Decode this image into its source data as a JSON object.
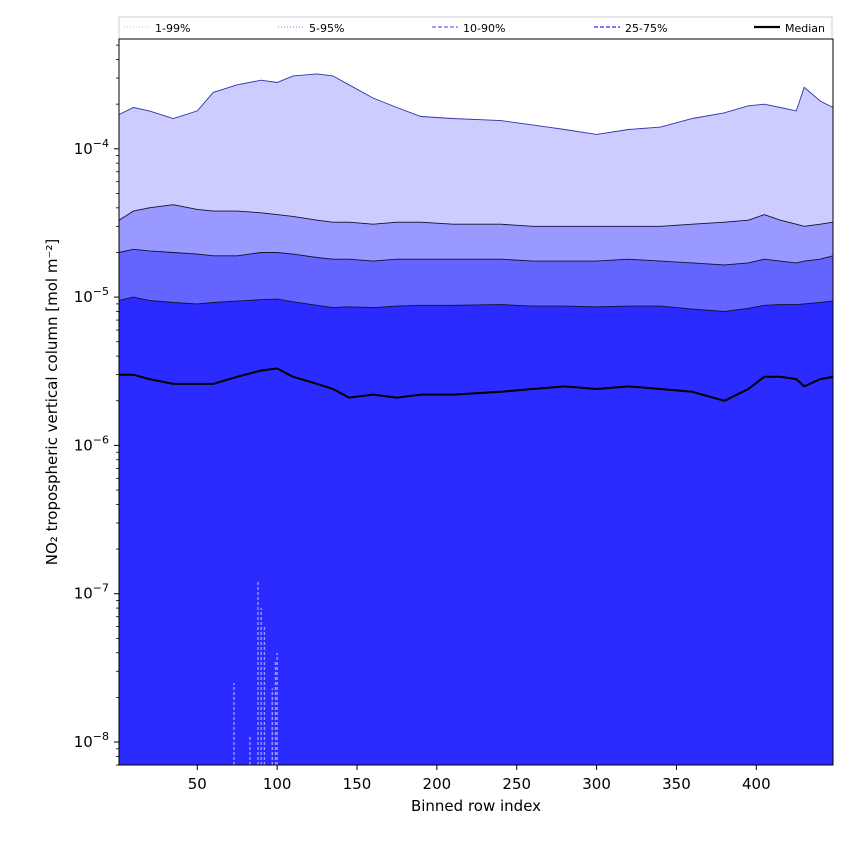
{
  "chart_data": {
    "type": "area",
    "title": "",
    "xlabel": "Binned row index",
    "ylabel": "NO₂ tropospheric vertical column [mol m⁻²]",
    "xlim": [
      1,
      448
    ],
    "ylim": [
      7e-09,
      0.00055
    ],
    "yscale": "log",
    "grid": false,
    "legend_position": "top",
    "x_ticks": [
      50,
      100,
      150,
      200,
      250,
      300,
      350,
      400
    ],
    "y_ticks": [
      {
        "value": 1e-08,
        "base": "10",
        "exp": "−8"
      },
      {
        "value": 1e-07,
        "base": "10",
        "exp": "−7"
      },
      {
        "value": 1e-06,
        "base": "10",
        "exp": "−6"
      },
      {
        "value": 1e-05,
        "base": "10",
        "exp": "−5"
      },
      {
        "value": 0.0001,
        "base": "10",
        "exp": "−4"
      }
    ],
    "x": [
      1,
      10,
      20,
      35,
      50,
      60,
      75,
      90,
      100,
      110,
      125,
      135,
      145,
      160,
      175,
      190,
      210,
      240,
      260,
      280,
      300,
      320,
      340,
      360,
      380,
      395,
      405,
      415,
      425,
      430,
      440,
      448
    ],
    "bands": [
      {
        "name": "1-99%",
        "color": "#ccccff",
        "upper": [
          0.00017,
          0.00019,
          0.00018,
          0.00016,
          0.00018,
          0.00024,
          0.00027,
          0.00029,
          0.00028,
          0.00031,
          0.00032,
          0.00031,
          0.00027,
          0.00022,
          0.00019,
          0.000165,
          0.00016,
          0.000155,
          0.000145,
          0.000135,
          0.000125,
          0.000135,
          0.00014,
          0.00016,
          0.000175,
          0.000195,
          0.0002,
          0.00019,
          0.00018,
          0.00026,
          0.00021,
          0.00019
        ],
        "lower": [
          7e-09,
          7e-09,
          7e-09,
          7e-09,
          7e-09,
          7e-09,
          7e-09,
          7e-09,
          7e-09,
          7e-09,
          7e-09,
          7e-09,
          7e-09,
          7e-09,
          7e-09,
          7e-09,
          7e-09,
          7e-09,
          7e-09,
          7e-09,
          7e-09,
          7e-09,
          7e-09,
          7e-09,
          7e-09,
          7e-09,
          7e-09,
          7e-09,
          7e-09,
          7e-09,
          7e-09,
          7e-09
        ]
      },
      {
        "name": "5-95%",
        "color": "#9999ff",
        "upper": [
          3.3e-05,
          3.8e-05,
          4e-05,
          4.2e-05,
          3.9e-05,
          3.8e-05,
          3.8e-05,
          3.7e-05,
          3.6e-05,
          3.5e-05,
          3.3e-05,
          3.2e-05,
          3.2e-05,
          3.1e-05,
          3.2e-05,
          3.2e-05,
          3.1e-05,
          3.1e-05,
          3e-05,
          3e-05,
          3e-05,
          3e-05,
          3e-05,
          3.1e-05,
          3.2e-05,
          3.3e-05,
          3.6e-05,
          3.3e-05,
          3.1e-05,
          3e-05,
          3.1e-05,
          3.2e-05
        ],
        "lower": [
          7e-09,
          7e-09,
          7e-09,
          7e-09,
          7e-09,
          7e-09,
          7e-09,
          7e-09,
          7e-09,
          7e-09,
          7e-09,
          7e-09,
          7e-09,
          7e-09,
          7e-09,
          7e-09,
          7e-09,
          7e-09,
          7e-09,
          7e-09,
          7e-09,
          7e-09,
          7e-09,
          7e-09,
          7e-09,
          7e-09,
          7e-09,
          7e-09,
          7e-09,
          7e-09,
          7e-09,
          7e-09
        ]
      },
      {
        "name": "10-90%",
        "color": "#6464ff",
        "upper": [
          2e-05,
          2.1e-05,
          2.05e-05,
          2e-05,
          1.95e-05,
          1.9e-05,
          1.9e-05,
          2e-05,
          2e-05,
          1.95e-05,
          1.85e-05,
          1.8e-05,
          1.8e-05,
          1.75e-05,
          1.8e-05,
          1.8e-05,
          1.8e-05,
          1.8e-05,
          1.75e-05,
          1.75e-05,
          1.75e-05,
          1.8e-05,
          1.75e-05,
          1.7e-05,
          1.65e-05,
          1.7e-05,
          1.8e-05,
          1.75e-05,
          1.7e-05,
          1.75e-05,
          1.8e-05,
          1.9e-05
        ],
        "lower": [
          7e-09,
          7e-09,
          7e-09,
          7e-09,
          7e-09,
          7e-09,
          7e-09,
          7e-09,
          7e-09,
          7e-09,
          7e-09,
          7e-09,
          7e-09,
          7e-09,
          7e-09,
          7e-09,
          7e-09,
          7e-09,
          7e-09,
          7e-09,
          7e-09,
          7e-09,
          7e-09,
          7e-09,
          7e-09,
          7e-09,
          7e-09,
          7e-09,
          7e-09,
          7e-09,
          7e-09,
          7e-09
        ]
      },
      {
        "name": "25-75%",
        "color": "#2b2bff",
        "upper": [
          9.5e-06,
          1e-05,
          9.5e-06,
          9.2e-06,
          9e-06,
          9.2e-06,
          9.4e-06,
          9.6e-06,
          9.7e-06,
          9.3e-06,
          8.8e-06,
          8.5e-06,
          8.6e-06,
          8.5e-06,
          8.7e-06,
          8.8e-06,
          8.8e-06,
          8.9e-06,
          8.7e-06,
          8.7e-06,
          8.6e-06,
          8.7e-06,
          8.7e-06,
          8.3e-06,
          8e-06,
          8.4e-06,
          8.8e-06,
          8.9e-06,
          8.9e-06,
          9e-06,
          9.2e-06,
          9.4e-06
        ],
        "lower": [
          7e-09,
          7e-09,
          7e-09,
          7e-09,
          7e-09,
          7e-09,
          7e-09,
          7e-09,
          7e-09,
          7e-09,
          7e-09,
          7e-09,
          7e-09,
          7e-09,
          7e-09,
          7e-09,
          7e-09,
          7e-09,
          7e-09,
          7e-09,
          7e-09,
          7e-09,
          7e-09,
          7e-09,
          7e-09,
          7e-09,
          7e-09,
          7e-09,
          7e-09,
          7e-09,
          7e-09,
          7e-09
        ]
      }
    ],
    "median": {
      "name": "Median",
      "color": "#000000",
      "values": [
        3e-06,
        3e-06,
        2.8e-06,
        2.6e-06,
        2.6e-06,
        2.6e-06,
        2.9e-06,
        3.2e-06,
        3.3e-06,
        2.9e-06,
        2.6e-06,
        2.4e-06,
        2.1e-06,
        2.2e-06,
        2.1e-06,
        2.2e-06,
        2.2e-06,
        2.3e-06,
        2.4e-06,
        2.5e-06,
        2.4e-06,
        2.5e-06,
        2.4e-06,
        2.3e-06,
        2e-06,
        2.4e-06,
        2.9e-06,
        2.9e-06,
        2.8e-06,
        2.5e-06,
        2.8e-06,
        2.9e-06
      ]
    },
    "low_spikes": {
      "color": "#9999ff",
      "x": [
        73,
        83,
        88,
        90,
        92,
        97,
        99,
        100
      ],
      "top": [
        2.5e-08,
        1.1e-08,
        1.2e-07,
        8e-08,
        6e-08,
        2.3e-08,
        3.5e-08,
        4e-08
      ]
    },
    "legend": [
      {
        "label": "1-99%",
        "color": "#ccccff",
        "style": "dotted"
      },
      {
        "label": "5-95%",
        "color": "#9999ff",
        "style": "dotted"
      },
      {
        "label": "10-90%",
        "color": "#6464ff",
        "style": "dashed"
      },
      {
        "label": "25-75%",
        "color": "#2b2bff",
        "style": "dashed"
      },
      {
        "label": "Median",
        "color": "#000000",
        "style": "solid"
      }
    ]
  }
}
